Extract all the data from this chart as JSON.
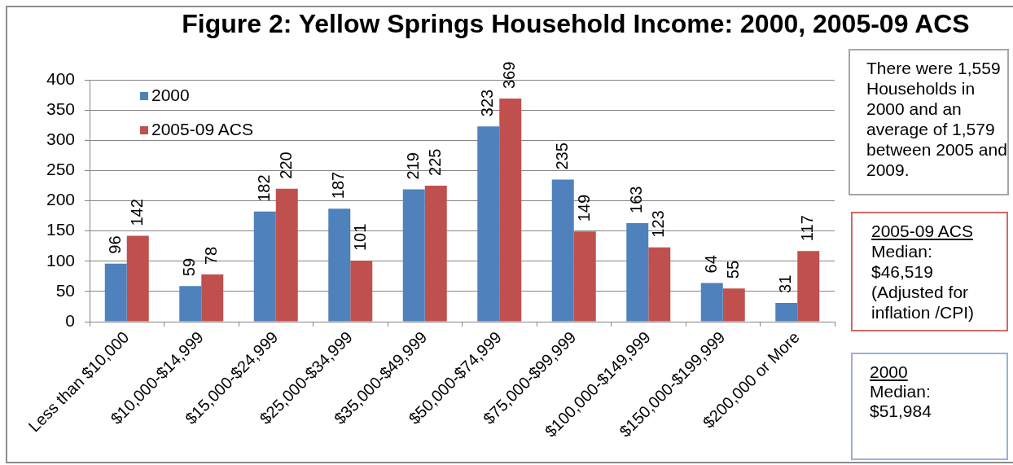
{
  "chart_data": {
    "type": "bar",
    "title": "Figure 2: Yellow Springs Household Income: 2000, 2005-09 ACS",
    "categories": [
      "Less than $10,000",
      "$10,000-$14,999",
      "$15,000-$24,999",
      "$25,000-$34,999",
      "$35,000-$49,999",
      "$50,000-$74,999",
      "$75,000-$99,999",
      "$100,000-$149,999",
      "$150,000-$199,999",
      "$200,000 or More"
    ],
    "series": [
      {
        "name": "2000",
        "color": "#4f81bd",
        "values": [
          96,
          59,
          182,
          187,
          219,
          323,
          235,
          163,
          64,
          31
        ]
      },
      {
        "name": "2005-09 ACS",
        "color": "#c0504d",
        "values": [
          142,
          78,
          220,
          101,
          225,
          369,
          149,
          123,
          55,
          117
        ]
      }
    ],
    "ylim": [
      0,
      400
    ],
    "yticks": [
      0,
      50,
      100,
      150,
      200,
      250,
      300,
      350,
      400
    ],
    "grid": "y",
    "legend": "top left",
    "data_labels": true,
    "annotations": [
      "There were 1,559 Households in 2000 and an average of 1,579 between 2005 and 2009.",
      "2005-09 ACS\nMedian:\n$46,519\n(Adjusted for\ninflation /CPI)",
      "2000\nMedian:\n$51,984"
    ]
  }
}
